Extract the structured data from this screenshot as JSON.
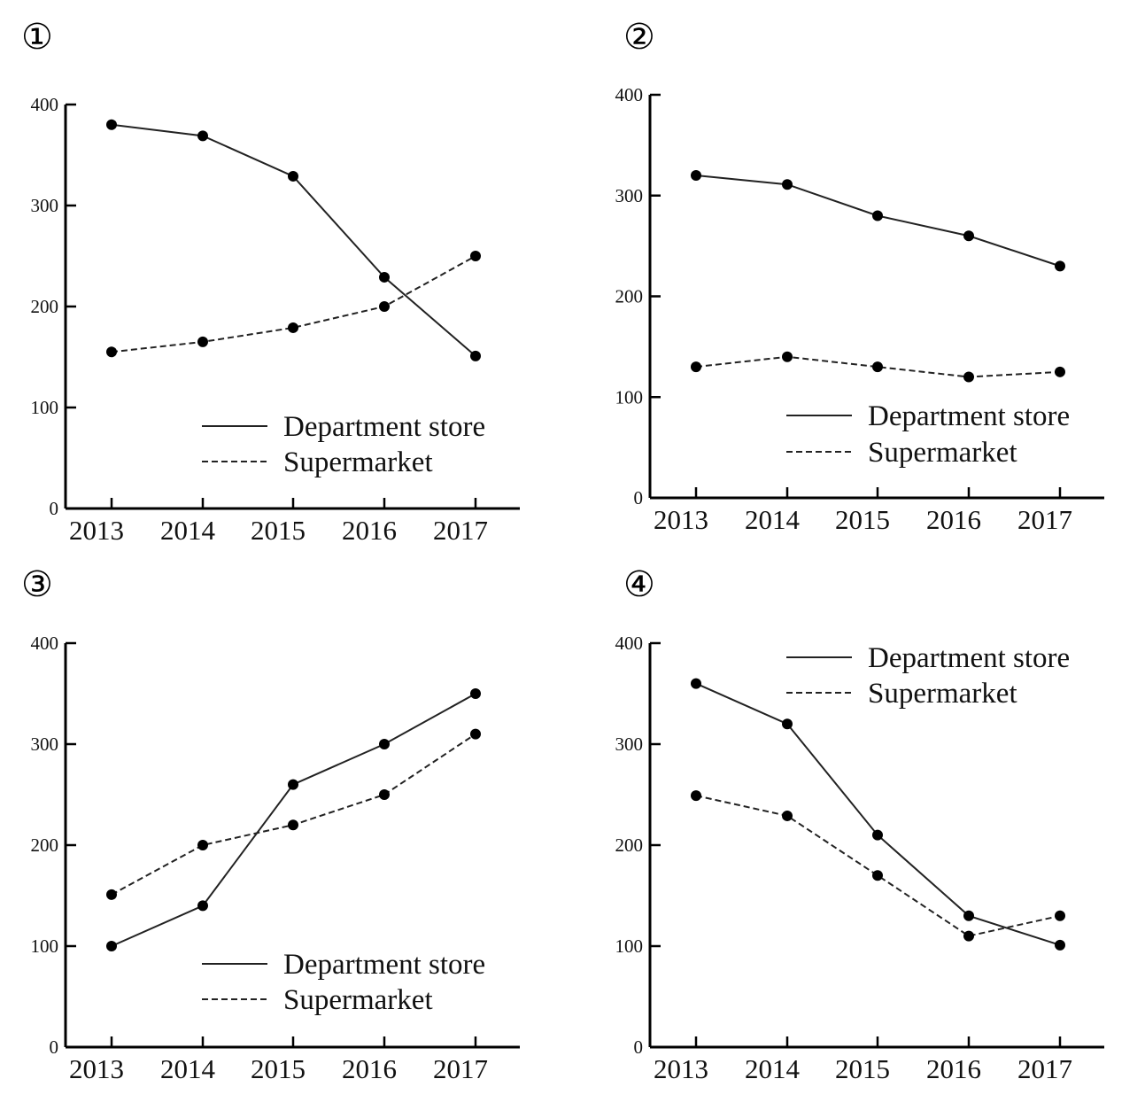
{
  "chart_data": [
    {
      "type": "line",
      "panel_label": "①",
      "categories": [
        "2013",
        "2014",
        "2015",
        "2016",
        "2017"
      ],
      "series": [
        {
          "name": "Department store",
          "style": "solid",
          "values": [
            380,
            369,
            329,
            229,
            151
          ]
        },
        {
          "name": "Supermarket",
          "style": "dashed",
          "values": [
            155,
            165,
            179,
            200,
            250
          ]
        }
      ],
      "yticks": [
        "0",
        "100",
        "200",
        "300",
        "400"
      ],
      "ylim": [
        0,
        400
      ],
      "legend_position": "bottom-right"
    },
    {
      "type": "line",
      "panel_label": "②",
      "categories": [
        "2013",
        "2014",
        "2015",
        "2016",
        "2017"
      ],
      "series": [
        {
          "name": "Department store",
          "style": "solid",
          "values": [
            320,
            311,
            280,
            260,
            230
          ]
        },
        {
          "name": "Supermarket",
          "style": "dashed",
          "values": [
            130,
            140,
            130,
            120,
            125
          ]
        }
      ],
      "yticks": [
        "0",
        "100",
        "200",
        "300",
        "400"
      ],
      "ylim": [
        0,
        400
      ],
      "legend_position": "bottom-right"
    },
    {
      "type": "line",
      "panel_label": "③",
      "categories": [
        "2013",
        "2014",
        "2015",
        "2016",
        "2017"
      ],
      "series": [
        {
          "name": "Department store",
          "style": "solid",
          "values": [
            100,
            140,
            260,
            300,
            350
          ]
        },
        {
          "name": "Supermarket",
          "style": "dashed",
          "values": [
            151,
            200,
            220,
            250,
            310
          ]
        }
      ],
      "yticks": [
        "0",
        "100",
        "200",
        "300",
        "400"
      ],
      "ylim": [
        0,
        400
      ],
      "legend_position": "bottom-right"
    },
    {
      "type": "line",
      "panel_label": "④",
      "categories": [
        "2013",
        "2014",
        "2015",
        "2016",
        "2017"
      ],
      "series": [
        {
          "name": "Department store",
          "style": "solid",
          "values": [
            360,
            320,
            210,
            130,
            101
          ]
        },
        {
          "name": "Supermarket",
          "style": "dashed",
          "values": [
            249,
            229,
            170,
            110,
            130
          ]
        }
      ],
      "yticks": [
        "0",
        "100",
        "200",
        "300",
        "400"
      ],
      "ylim": [
        0,
        400
      ],
      "legend_position": "top-right"
    }
  ]
}
